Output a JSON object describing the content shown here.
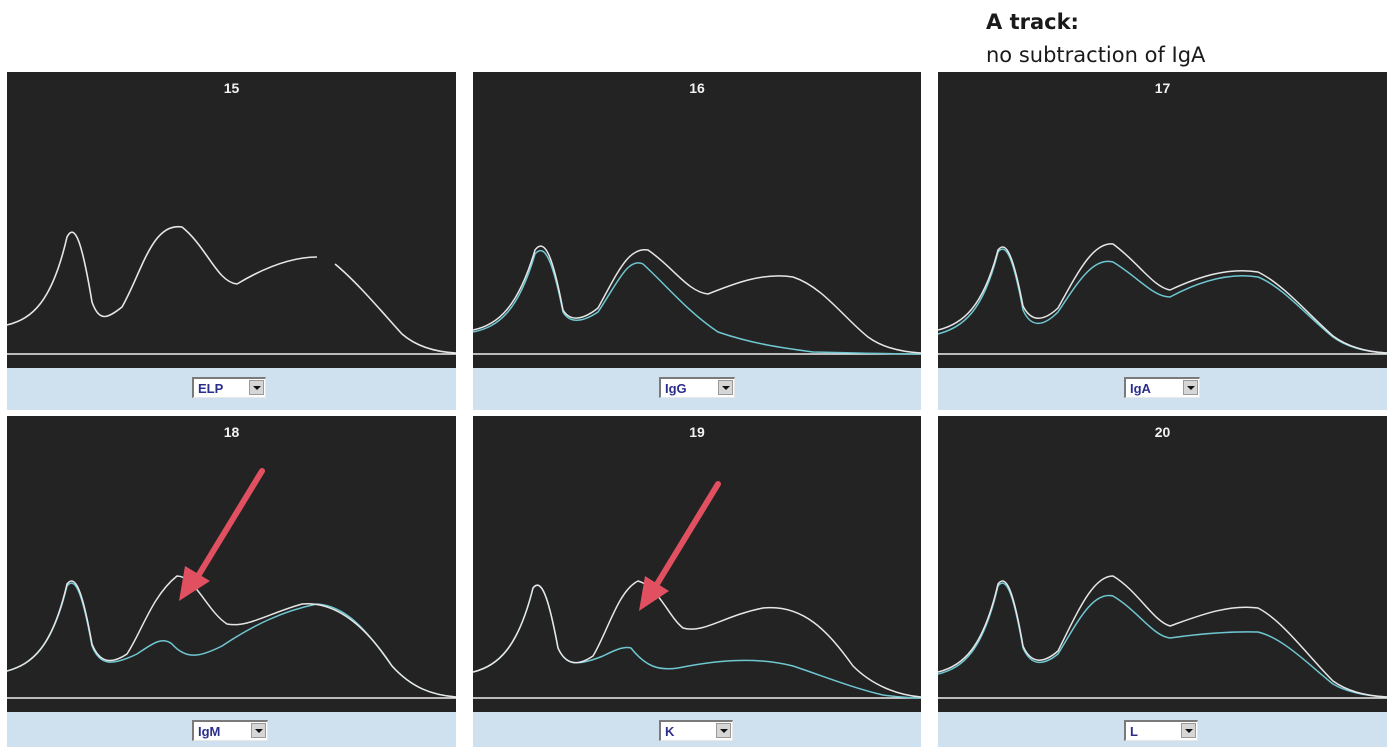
{
  "annotation": {
    "title": "A track:",
    "subtitle": "no  subtraction of IgA"
  },
  "colors": {
    "panel_bg": "#232323",
    "trace_white": "#e6e6e6",
    "trace_cyan": "#6fc7d1",
    "baseline": "#f0f0f0",
    "strip_bg": "#cfe0ee",
    "select_text": "#2b2f8c",
    "arrow": "#e05060"
  },
  "panels": [
    {
      "number": "15",
      "selector": "ELP",
      "has_arrow": false
    },
    {
      "number": "16",
      "selector": "IgG",
      "has_arrow": false
    },
    {
      "number": "17",
      "selector": "IgA",
      "has_arrow": false
    },
    {
      "number": "18",
      "selector": "IgM",
      "has_arrow": true
    },
    {
      "number": "19",
      "selector": "K",
      "has_arrow": true
    },
    {
      "number": "20",
      "selector": "L",
      "has_arrow": false
    }
  ]
}
